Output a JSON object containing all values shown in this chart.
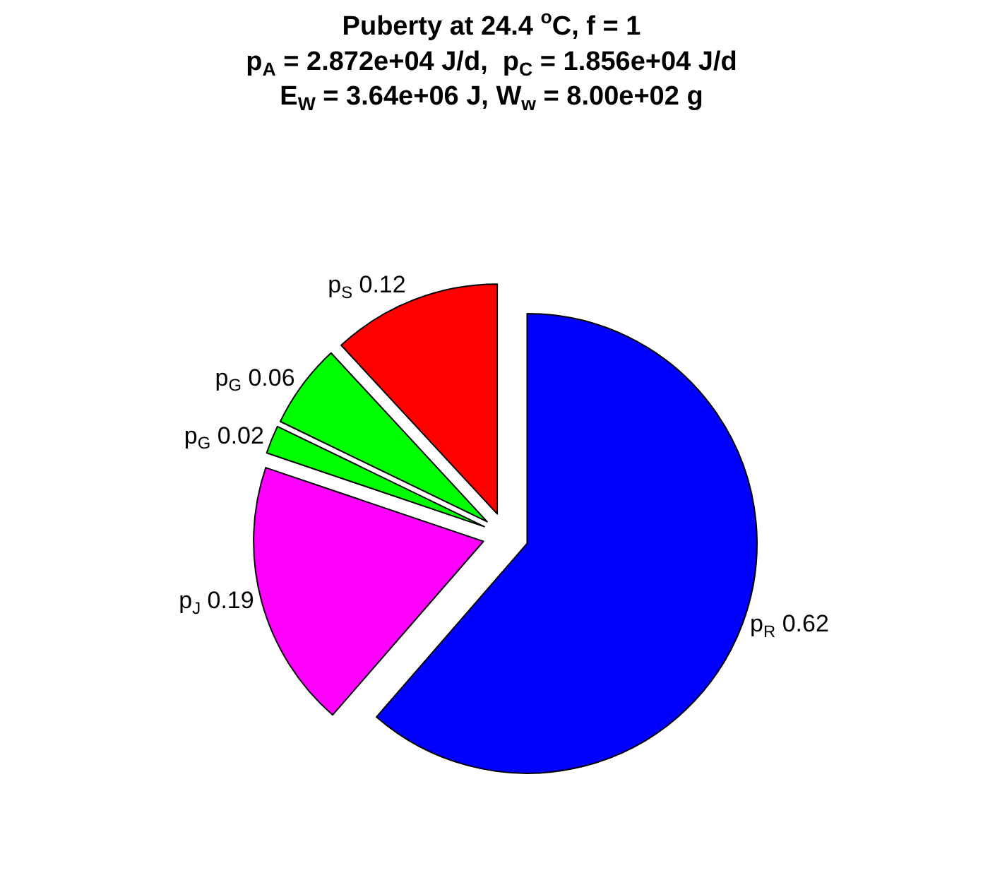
{
  "chart_data": {
    "type": "pie",
    "title": "Puberty at 24.4 $^{o}$C, f = 1\np$_{A}$ = 2.872e+04 J/d,  p$_{C}$ = 1.856e+04 J/d\nE$_{W}$ = 3.64e+06 J, W$_{w}$ = 8.00e+02 g",
    "categories": [
      "p$_{R}$",
      "p$_{J}$",
      "p$_{G}$",
      "p$_{G}$",
      "p$_{S}$"
    ],
    "values": [
      0.62,
      0.19,
      0.02,
      0.06,
      0.12
    ],
    "colors": [
      "#0000ff",
      "#ff00ff",
      "#00ff00",
      "#00ff00",
      "#ff0000"
    ],
    "data_labels": true
  }
}
